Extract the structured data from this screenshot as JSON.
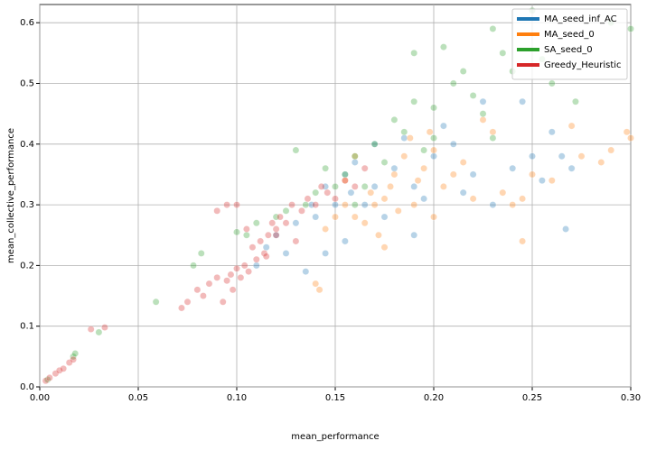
{
  "chart_data": {
    "type": "scatter",
    "x_label": "mean_performance",
    "y_label": "mean_collective_performance",
    "xlim": [
      0,
      0.3
    ],
    "ylim": [
      0,
      0.63
    ],
    "xticks": [
      {
        "value": 0,
        "label": "0.00"
      },
      0.05,
      {
        "value": 0.1,
        "label": "0.10"
      },
      0.15,
      {
        "value": 0.2,
        "label": "0.20"
      },
      0.25,
      {
        "value": 0.3,
        "label": "0.30"
      }
    ],
    "yticks": [
      {
        "value": 0,
        "label": "0.0"
      },
      0.1,
      0.2,
      0.3,
      0.4,
      0.5,
      0.6
    ],
    "grid": true,
    "legend": "upper right",
    "series": [
      {
        "name": "MA_seed_inf_AC",
        "color": "#1f77b4",
        "x": [
          0.11,
          0.115,
          0.12,
          0.13,
          0.135,
          0.138,
          0.14,
          0.145,
          0.15,
          0.155,
          0.158,
          0.16,
          0.165,
          0.17,
          0.175,
          0.18,
          0.185,
          0.19,
          0.195,
          0.2,
          0.205,
          0.21,
          0.215,
          0.22,
          0.225,
          0.23,
          0.24,
          0.245,
          0.25,
          0.255,
          0.26,
          0.265,
          0.267,
          0.27,
          0.155,
          0.145,
          0.19,
          0.125,
          0.17
        ],
        "values": [
          0.2,
          0.23,
          0.25,
          0.27,
          0.19,
          0.3,
          0.28,
          0.33,
          0.3,
          0.35,
          0.32,
          0.37,
          0.3,
          0.4,
          0.28,
          0.36,
          0.41,
          0.33,
          0.31,
          0.38,
          0.43,
          0.4,
          0.32,
          0.35,
          0.47,
          0.3,
          0.36,
          0.47,
          0.38,
          0.34,
          0.42,
          0.38,
          0.26,
          0.36,
          0.24,
          0.22,
          0.25,
          0.22,
          0.33
        ]
      },
      {
        "name": "MA_seed_0",
        "color": "#ff7f0e",
        "x": [
          0.14,
          0.142,
          0.145,
          0.15,
          0.155,
          0.16,
          0.165,
          0.168,
          0.17,
          0.172,
          0.175,
          0.178,
          0.18,
          0.182,
          0.185,
          0.188,
          0.19,
          0.192,
          0.195,
          0.198,
          0.2,
          0.205,
          0.21,
          0.215,
          0.22,
          0.225,
          0.23,
          0.235,
          0.24,
          0.245,
          0.25,
          0.26,
          0.27,
          0.275,
          0.285,
          0.29,
          0.298,
          0.3,
          0.245,
          0.175,
          0.155,
          0.16,
          0.2
        ],
        "values": [
          0.17,
          0.16,
          0.26,
          0.28,
          0.3,
          0.28,
          0.27,
          0.32,
          0.3,
          0.25,
          0.31,
          0.33,
          0.35,
          0.29,
          0.38,
          0.41,
          0.3,
          0.34,
          0.36,
          0.42,
          0.28,
          0.33,
          0.35,
          0.37,
          0.31,
          0.44,
          0.42,
          0.32,
          0.3,
          0.24,
          0.35,
          0.34,
          0.43,
          0.38,
          0.37,
          0.39,
          0.42,
          0.41,
          0.31,
          0.23,
          0.34,
          0.38,
          0.39
        ]
      },
      {
        "name": "SA_seed_0",
        "color": "#2ca02c",
        "x": [
          0.004,
          0.017,
          0.018,
          0.03,
          0.059,
          0.078,
          0.082,
          0.1,
          0.105,
          0.11,
          0.12,
          0.125,
          0.13,
          0.135,
          0.14,
          0.145,
          0.15,
          0.155,
          0.16,
          0.165,
          0.17,
          0.175,
          0.18,
          0.185,
          0.19,
          0.195,
          0.2,
          0.205,
          0.21,
          0.215,
          0.22,
          0.225,
          0.23,
          0.235,
          0.24,
          0.25,
          0.255,
          0.26,
          0.272,
          0.29,
          0.3,
          0.19,
          0.16,
          0.2,
          0.23
        ],
        "values": [
          0.012,
          0.05,
          0.055,
          0.09,
          0.14,
          0.2,
          0.22,
          0.255,
          0.25,
          0.27,
          0.28,
          0.29,
          0.39,
          0.3,
          0.32,
          0.36,
          0.33,
          0.35,
          0.38,
          0.33,
          0.4,
          0.37,
          0.44,
          0.42,
          0.47,
          0.39,
          0.46,
          0.56,
          0.5,
          0.52,
          0.48,
          0.45,
          0.59,
          0.55,
          0.52,
          0.62,
          0.54,
          0.5,
          0.47,
          0.6,
          0.59,
          0.55,
          0.3,
          0.41,
          0.41
        ]
      },
      {
        "name": "Greedy_Heuristic",
        "color": "#d62728",
        "x": [
          0.003,
          0.005,
          0.008,
          0.01,
          0.012,
          0.015,
          0.017,
          0.026,
          0.033,
          0.072,
          0.075,
          0.08,
          0.083,
          0.086,
          0.09,
          0.093,
          0.095,
          0.097,
          0.098,
          0.1,
          0.102,
          0.104,
          0.106,
          0.108,
          0.11,
          0.112,
          0.114,
          0.116,
          0.118,
          0.12,
          0.122,
          0.125,
          0.128,
          0.13,
          0.133,
          0.136,
          0.14,
          0.143,
          0.146,
          0.15,
          0.155,
          0.16,
          0.165,
          0.09,
          0.095,
          0.1,
          0.105,
          0.115,
          0.12
        ],
        "values": [
          0.01,
          0.015,
          0.022,
          0.027,
          0.03,
          0.04,
          0.045,
          0.095,
          0.098,
          0.13,
          0.14,
          0.16,
          0.15,
          0.17,
          0.18,
          0.14,
          0.175,
          0.185,
          0.16,
          0.195,
          0.18,
          0.2,
          0.19,
          0.23,
          0.21,
          0.24,
          0.22,
          0.25,
          0.27,
          0.26,
          0.28,
          0.27,
          0.3,
          0.24,
          0.29,
          0.31,
          0.3,
          0.33,
          0.32,
          0.31,
          0.34,
          0.33,
          0.36,
          0.29,
          0.3,
          0.3,
          0.26,
          0.215,
          0.25
        ]
      }
    ]
  }
}
